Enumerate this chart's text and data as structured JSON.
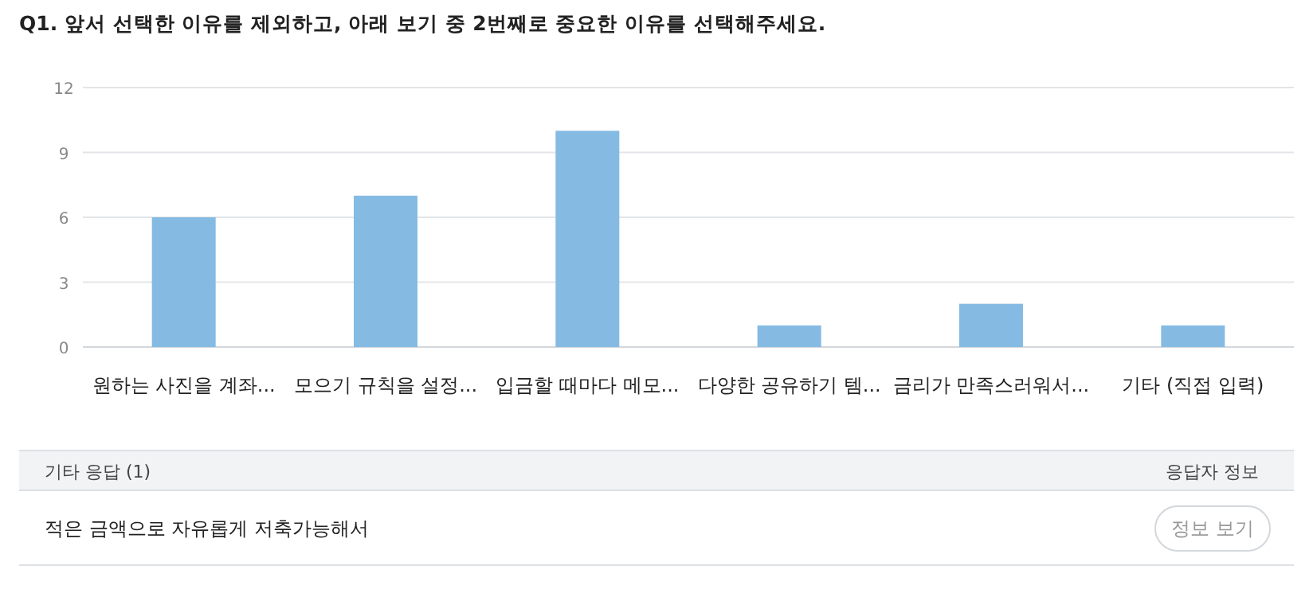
{
  "chart_data": {
    "type": "bar",
    "title": "Q1. 앞서 선택한 이유를 제외하고, 아래 보기 중 2번째로 중요한 이유를 선택해주세요.",
    "categories": [
      "원하는 사진을 계좌...",
      "모으기 규칙을 설정...",
      "입금할 때마다 메모...",
      "다양한 공유하기 템...",
      "금리가 만족스러워서...",
      "기타 (직접 입력)"
    ],
    "values": [
      6,
      7,
      10,
      1,
      2,
      1
    ],
    "color": "#85bbe3",
    "ylim": [
      0,
      12
    ],
    "yticks": [
      0,
      3,
      6,
      9,
      12
    ],
    "grid": "y",
    "annotations": [
      "기타 응답 (1)",
      "응답자 정보",
      "적은 금액으로 자유롭게 저축가능해서",
      "정보 보기"
    ]
  }
}
